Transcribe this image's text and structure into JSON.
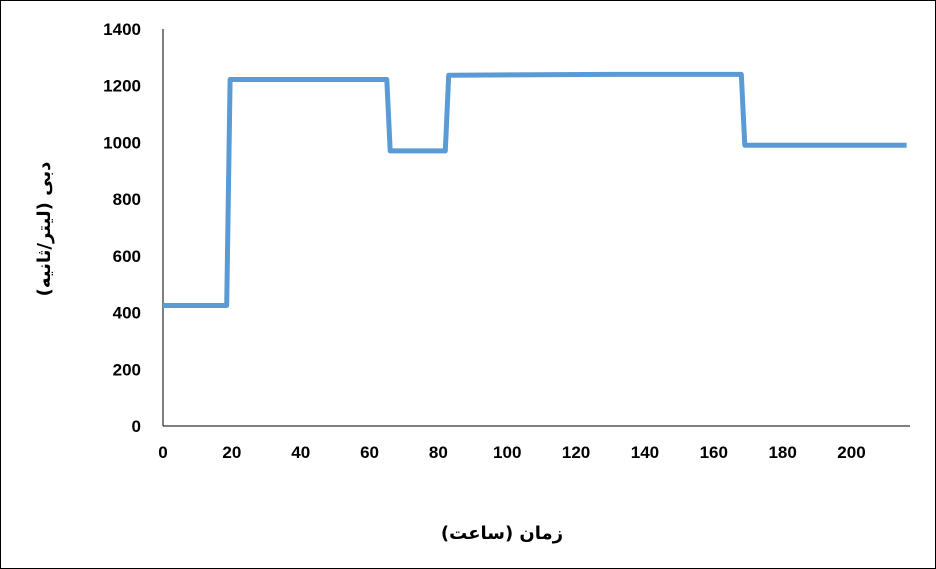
{
  "chart_data": {
    "type": "line",
    "title": "",
    "xlabel": "زمان (ساعت)",
    "ylabel": "دبی (لیتر/ثانیه)",
    "xlim": [
      0,
      217
    ],
    "ylim": [
      0,
      1400
    ],
    "x_ticks": [
      0,
      20,
      40,
      60,
      80,
      100,
      120,
      140,
      160,
      180,
      200
    ],
    "y_ticks": [
      0,
      200,
      400,
      600,
      800,
      1000,
      1200,
      1400
    ],
    "grid": false,
    "legend": "none",
    "series": [
      {
        "color": "#5b9bd5",
        "x": [
          0,
          18.5,
          19.5,
          65,
          66,
          82,
          83,
          130,
          168,
          169,
          216
        ],
        "y": [
          425,
          425,
          1222,
          1222,
          970,
          970,
          1237,
          1240,
          1240,
          990,
          990
        ]
      }
    ]
  }
}
